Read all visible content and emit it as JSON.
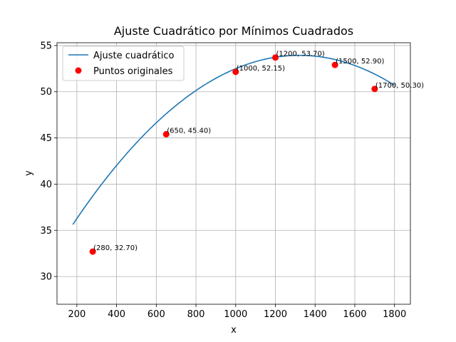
{
  "chart_data": {
    "type": "scatter",
    "title": "Ajuste Cuadrático por Mínimos Cuadrados",
    "xlabel": "x",
    "ylabel": "y",
    "xlim": [
      100,
      1880
    ],
    "ylim": [
      27,
      55.3
    ],
    "xticks": [
      200,
      400,
      600,
      800,
      1000,
      1200,
      1400,
      1600,
      1800
    ],
    "yticks": [
      30,
      35,
      40,
      45,
      50,
      55
    ],
    "grid": true,
    "legend_position": "top-left",
    "series": [
      {
        "name": "Ajuste cuadrático",
        "kind": "line",
        "color": "#1f77b4",
        "x_range": [
          180,
          1800
        ],
        "coefficients": {
          "a": -1.408e-05,
          "b": 0.037176,
          "c": 29.4
        }
      },
      {
        "name": "Puntos originales",
        "kind": "scatter",
        "color": "#ff0000",
        "points": [
          {
            "x": 280,
            "y": 32.7,
            "label": "(280, 32.70)"
          },
          {
            "x": 650,
            "y": 45.4,
            "label": "(650, 45.40)"
          },
          {
            "x": 1000,
            "y": 52.15,
            "label": "(1000, 52.15)"
          },
          {
            "x": 1200,
            "y": 53.7,
            "label": "(1200, 53.70)"
          },
          {
            "x": 1500,
            "y": 52.9,
            "label": "(1500, 52.90)"
          },
          {
            "x": 1700,
            "y": 50.3,
            "label": "(1700, 50.30)"
          }
        ]
      }
    ]
  }
}
